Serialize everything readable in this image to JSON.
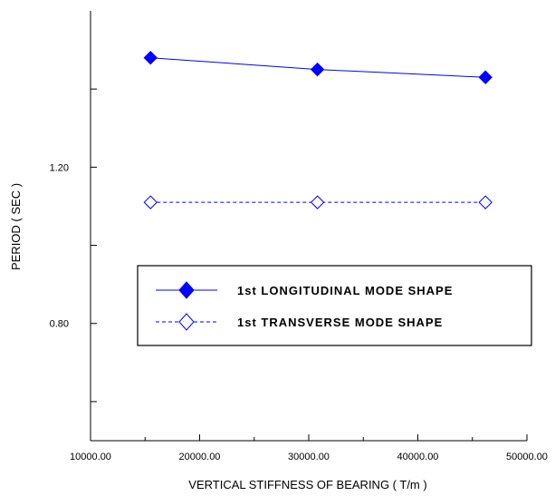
{
  "chart_data": {
    "type": "line",
    "title": "",
    "xlabel": "VERTICAL STIFFNESS OF BEARING ( T/m )",
    "ylabel": "PERIOD ( SEC )",
    "xlim": [
      10000,
      50000
    ],
    "ylim": [
      0.5,
      1.6
    ],
    "x_ticks": [
      10000,
      20000,
      30000,
      40000,
      50000
    ],
    "x_tick_labels": [
      "10000.00",
      "20000.00",
      "30000.00",
      "40000.00",
      "50000.00"
    ],
    "y_tick_values": [
      0.8,
      1.2
    ],
    "y_tick_labels": [
      "0.80",
      "1.20"
    ],
    "y_minor_ticks": [
      0.6,
      0.8,
      1.0,
      1.2,
      1.4
    ],
    "x": [
      15500,
      30800,
      46200
    ],
    "series": [
      {
        "name": "1st LONGITUDINAL MODE SHAPE",
        "values": [
          1.48,
          1.45,
          1.43
        ],
        "marker": "diamond-filled",
        "line": "solid",
        "color": "#0000ff"
      },
      {
        "name": "1st TRANSVERSE MODE SHAPE",
        "values": [
          1.11,
          1.11,
          1.11
        ],
        "marker": "diamond-open",
        "line": "dashed",
        "color": "#0000ff"
      }
    ],
    "legend_position": "center-right",
    "grid": false
  }
}
